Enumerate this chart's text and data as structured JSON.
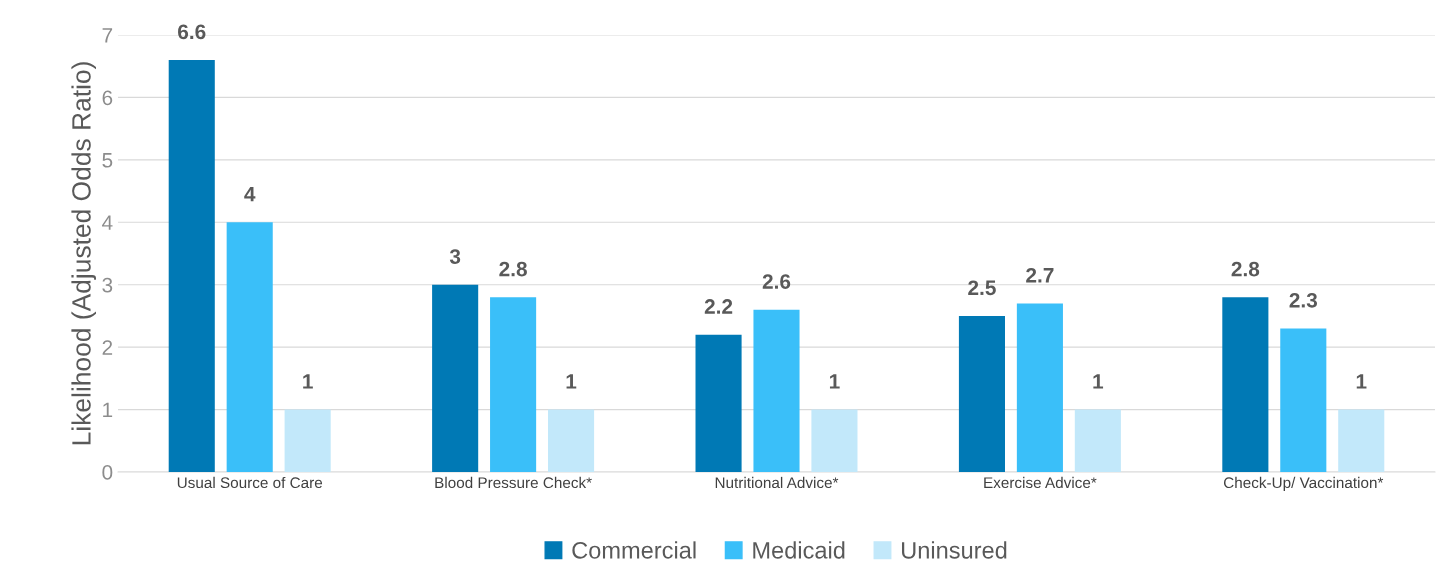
{
  "chart_data": {
    "type": "bar",
    "ylabel": "Likelihood (Adjusted Odds Ratio)",
    "categories": [
      "Usual Source of Care",
      "Blood Pressure Check*",
      "Nutritional Advice*",
      "Exercise Advice*",
      "Check-Up/ Vaccination*"
    ],
    "series": [
      {
        "name": "Commercial",
        "color": "#0079b5",
        "values": [
          6.6,
          3,
          2.2,
          2.5,
          2.8
        ]
      },
      {
        "name": "Medicaid",
        "color": "#3abff9",
        "values": [
          4,
          2.8,
          2.6,
          2.7,
          2.3
        ]
      },
      {
        "name": "Uninsured",
        "color": "#c2e8fa",
        "values": [
          1,
          1,
          1,
          1,
          1
        ]
      }
    ],
    "ylim": [
      0,
      7
    ],
    "yticks": [
      0,
      1,
      2,
      3,
      4,
      5,
      6,
      7
    ],
    "grid": "y",
    "legend": "bottom",
    "data_labels": true
  }
}
